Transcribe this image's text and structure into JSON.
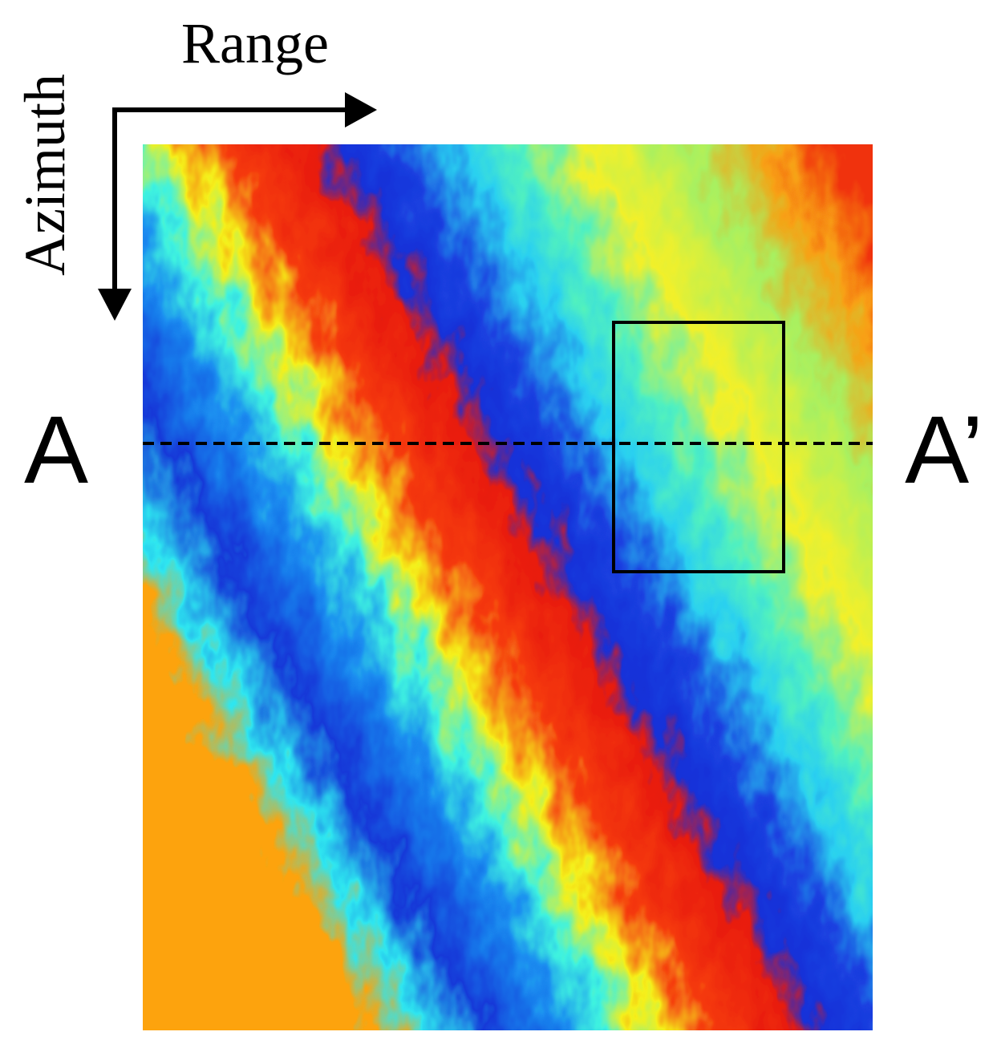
{
  "labels": {
    "range": "Range",
    "azimuth": "Azimuth",
    "left_point": "A",
    "right_point": "A’"
  }
}
